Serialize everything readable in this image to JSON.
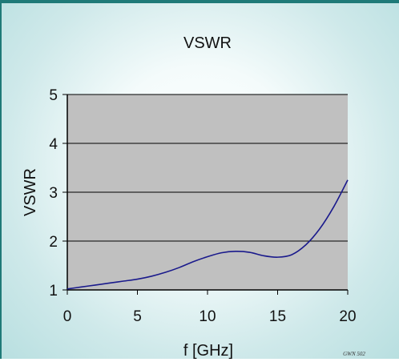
{
  "chart_data": {
    "type": "line",
    "title": "VSWR",
    "xlabel": "f [GHz]",
    "ylabel": "VSWR",
    "xlim": [
      0,
      20
    ],
    "ylim": [
      1,
      5
    ],
    "xticks": [
      "0",
      "5",
      "10",
      "15",
      "20"
    ],
    "yticks": [
      "1",
      "2",
      "3",
      "4",
      "5"
    ],
    "grid": "horizontal",
    "legend": "none",
    "plot_background": "#c0c0c0",
    "line_color": "#1a1a8c",
    "series": [
      {
        "x": [
          0,
          1,
          2,
          3,
          4,
          5,
          6,
          7,
          8,
          9,
          10,
          11,
          12,
          13,
          14,
          15,
          16,
          17,
          18,
          19,
          20
        ],
        "y": [
          1.02,
          1.06,
          1.1,
          1.14,
          1.18,
          1.22,
          1.28,
          1.36,
          1.46,
          1.58,
          1.68,
          1.76,
          1.79,
          1.77,
          1.7,
          1.67,
          1.72,
          1.92,
          2.25,
          2.7,
          3.25
        ]
      }
    ]
  },
  "footer": {
    "code": "GWN 502"
  }
}
